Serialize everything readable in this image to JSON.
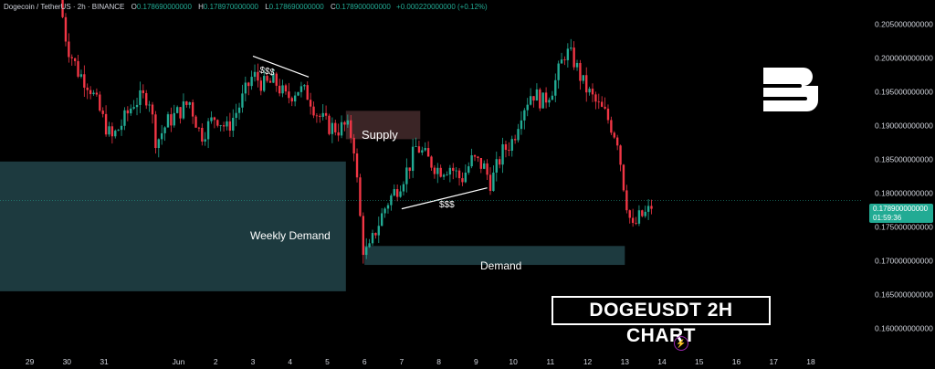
{
  "header": {
    "symbol": "Dogecoin / TetherUS · 2h · BINANCE",
    "o_label": "O",
    "o_value": "0.178690000000",
    "h_label": "H",
    "h_value": "0.178970000000",
    "l_label": "L",
    "l_value": "0.178690000000",
    "c_label": "C",
    "c_value": "0.178900000000",
    "change": "+0.000220000000 (+0.12%)"
  },
  "annotations": {
    "supply": "Supply",
    "demand": "Demand",
    "weekly_demand": "Weekly Demand",
    "liquidity_top": "$$$",
    "liquidity_bottom": "$$$",
    "chart_title": "DOGEUSDT 2H CHART"
  },
  "price_tag": {
    "price": "0.178900000000",
    "countdown": "01:59:36"
  },
  "colors": {
    "up": "#22ab94",
    "down": "#f23645",
    "zone": "#1d3a3f",
    "supply": "#3b2526"
  },
  "icons": [
    "logo-icon",
    "lightning-icon"
  ],
  "chart_data": {
    "type": "candlestick",
    "title": "",
    "y_ticks": [
      "0.205000000000",
      "0.200000000000",
      "0.195000000000",
      "0.190000000000",
      "0.185000000000",
      "0.180000000000",
      "0.175000000000",
      "0.170000000000",
      "0.165000000000",
      "0.160000000000"
    ],
    "y_tick_values": [
      0.205,
      0.2,
      0.195,
      0.19,
      0.185,
      0.18,
      0.175,
      0.17,
      0.165,
      0.16
    ],
    "ylim": [
      0.1567,
      0.2086
    ],
    "x_ticks": [
      "29",
      "30",
      "31",
      "Jun",
      "2",
      "3",
      "4",
      "5",
      "6",
      "7",
      "8",
      "9",
      "10",
      "11",
      "12",
      "13",
      "14",
      "15",
      "16",
      "17",
      "18"
    ],
    "x_tick_days": [
      -3,
      -2,
      -1,
      1,
      2,
      3,
      4,
      5,
      6,
      7,
      8,
      9,
      10,
      11,
      12,
      13,
      14,
      15,
      16,
      17,
      18
    ],
    "xlim": [
      -3.8,
      19.4
    ],
    "current_price": 0.1789,
    "zones": [
      {
        "name": "Weekly Demand",
        "x0": -3.8,
        "x1": 5.5,
        "y0": 0.1655,
        "y1": 0.1847
      },
      {
        "name": "Supply",
        "x0": 5.5,
        "x1": 7.5,
        "y0": 0.188,
        "y1": 0.1922
      },
      {
        "name": "Demand",
        "x0": 6.0,
        "x1": 13.0,
        "y0": 0.1694,
        "y1": 0.1722
      }
    ],
    "trendlines": [
      {
        "label": "$$$",
        "x0": 3.0,
        "y0": 0.2003,
        "x1": 4.5,
        "y1": 0.1972
      },
      {
        "label": "$$$",
        "x0": 7.0,
        "y0": 0.1777,
        "x1": 9.3,
        "y1": 0.1808
      }
    ],
    "close_path": [
      [
        -2.2,
        0.209
      ],
      [
        -2.0,
        0.202
      ],
      [
        -1.7,
        0.198
      ],
      [
        -1.4,
        0.196
      ],
      [
        -1.0,
        0.1905
      ],
      [
        -0.8,
        0.188
      ],
      [
        -0.5,
        0.1905
      ],
      [
        -0.2,
        0.1935
      ],
      [
        0.2,
        0.1945
      ],
      [
        0.4,
        0.1875
      ],
      [
        0.7,
        0.1905
      ],
      [
        1.0,
        0.192
      ],
      [
        1.3,
        0.1935
      ],
      [
        1.6,
        0.1885
      ],
      [
        2.0,
        0.1915
      ],
      [
        2.3,
        0.1895
      ],
      [
        2.6,
        0.1925
      ],
      [
        3.0,
        0.1975
      ],
      [
        3.3,
        0.196
      ],
      [
        3.6,
        0.1965
      ],
      [
        3.9,
        0.194
      ],
      [
        4.2,
        0.1955
      ],
      [
        4.5,
        0.1945
      ],
      [
        4.7,
        0.192
      ],
      [
        5.0,
        0.19
      ],
      [
        5.3,
        0.1895
      ],
      [
        5.5,
        0.19
      ],
      [
        5.7,
        0.188
      ],
      [
        5.85,
        0.1785
      ],
      [
        5.95,
        0.172
      ],
      [
        6.1,
        0.171
      ],
      [
        6.3,
        0.1745
      ],
      [
        6.6,
        0.1785
      ],
      [
        6.9,
        0.181
      ],
      [
        7.2,
        0.184
      ],
      [
        7.4,
        0.187
      ],
      [
        7.7,
        0.185
      ],
      [
        8.0,
        0.1835
      ],
      [
        8.3,
        0.184
      ],
      [
        8.6,
        0.182
      ],
      [
        8.9,
        0.185
      ],
      [
        9.2,
        0.184
      ],
      [
        9.4,
        0.1815
      ],
      [
        9.7,
        0.186
      ],
      [
        10.0,
        0.188
      ],
      [
        10.2,
        0.192
      ],
      [
        10.5,
        0.195
      ],
      [
        10.8,
        0.1935
      ],
      [
        11.1,
        0.196
      ],
      [
        11.4,
        0.201
      ],
      [
        11.6,
        0.2
      ],
      [
        11.9,
        0.196
      ],
      [
        12.2,
        0.1935
      ],
      [
        12.5,
        0.1915
      ],
      [
        12.8,
        0.188
      ],
      [
        13.0,
        0.18
      ],
      [
        13.2,
        0.1745
      ],
      [
        13.4,
        0.1765
      ],
      [
        13.6,
        0.177
      ],
      [
        13.8,
        0.1789
      ]
    ]
  }
}
